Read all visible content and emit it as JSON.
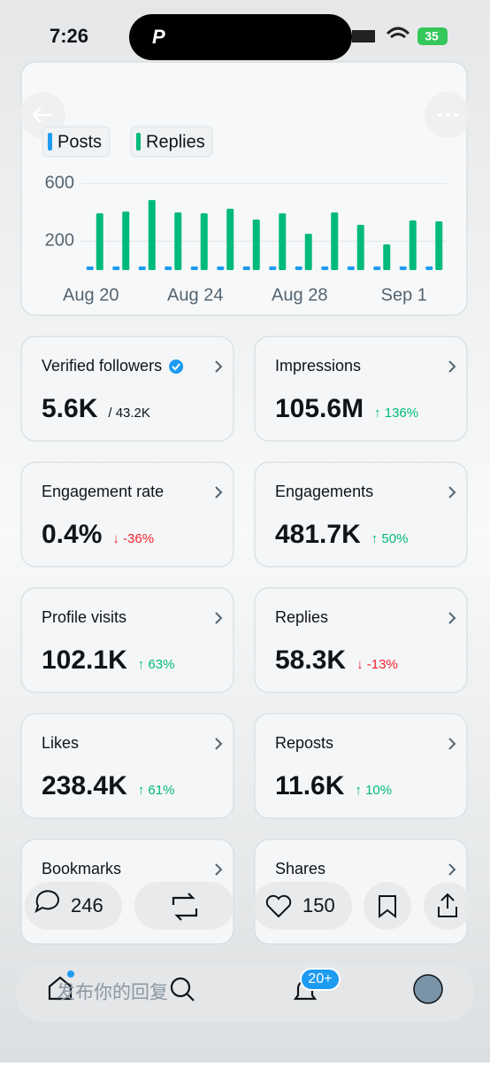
{
  "status": {
    "time": "7:26",
    "battery": "35"
  },
  "chart_data": {
    "type": "bar",
    "series": [
      {
        "name": "Posts",
        "color": "#1d9bf0",
        "values": [
          25,
          25,
          25,
          25,
          25,
          25,
          25,
          25,
          25,
          25,
          25,
          25,
          25,
          25
        ]
      },
      {
        "name": "Replies",
        "color": "#00ba7c",
        "values": [
          394,
          406,
          486,
          400,
          394,
          425,
          351,
          394,
          252,
          400,
          314,
          178,
          345,
          338
        ]
      }
    ],
    "categories": [
      "Aug 20",
      null,
      null,
      null,
      "Aug 24",
      null,
      null,
      null,
      "Aug 28",
      null,
      null,
      null,
      "Sep 1",
      null
    ],
    "ylim": [
      0,
      700
    ],
    "yticks": [
      200,
      600
    ],
    "grid": true
  },
  "metrics": [
    {
      "label": "Verified followers",
      "verified": true,
      "value": "5.6K",
      "total": "/ 43.2K"
    },
    {
      "label": "Impressions",
      "value": "105.6M",
      "change": "↑ 136%",
      "trend": "up"
    },
    {
      "label": "Engagement rate",
      "value": "0.4%",
      "change": "↓ -36%",
      "trend": "down"
    },
    {
      "label": "Engagements",
      "value": "481.7K",
      "change": "↑ 50%",
      "trend": "up"
    },
    {
      "label": "Profile visits",
      "value": "102.1K",
      "change": "↑ 63%",
      "trend": "up"
    },
    {
      "label": "Replies",
      "value": "58.3K",
      "change": "↓ -13%",
      "trend": "down"
    },
    {
      "label": "Likes",
      "value": "238.4K",
      "change": "↑ 61%",
      "trend": "up"
    },
    {
      "label": "Reposts",
      "value": "11.6K",
      "change": "↑ 10%",
      "trend": "up"
    },
    {
      "label": "Bookmarks"
    },
    {
      "label": "Shares"
    }
  ],
  "actions": {
    "replies": "246",
    "likes": "150"
  },
  "compose": {
    "placeholder": "发布你的回复"
  },
  "nav": {
    "notifications_badge": "20+"
  }
}
